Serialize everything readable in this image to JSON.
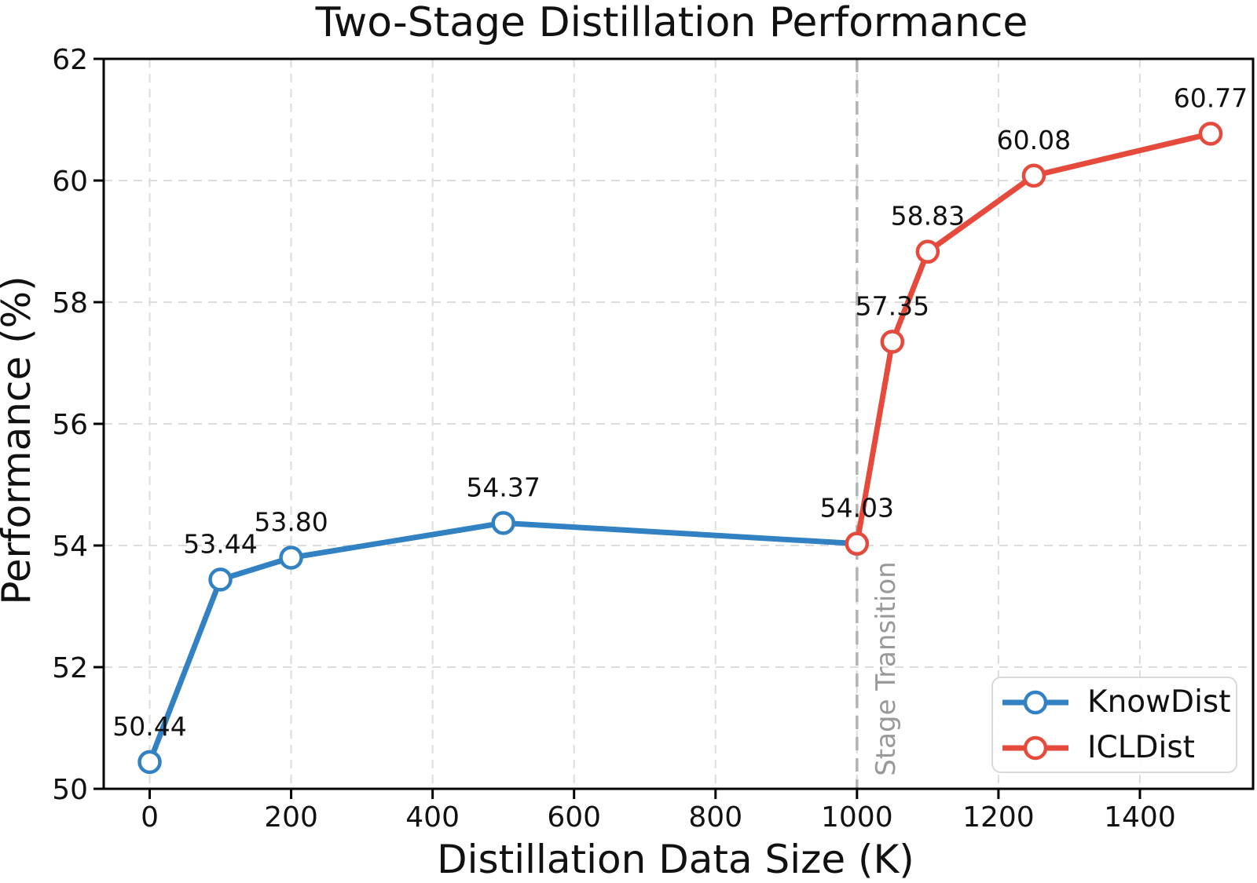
{
  "chart_data": {
    "type": "line",
    "title": "Two-Stage Distillation Performance",
    "xlabel": "Distillation Data Size (K)",
    "ylabel": "Performance (%)",
    "xlim": [
      -65,
      1560
    ],
    "ylim": [
      50,
      62
    ],
    "x_ticks": [
      0,
      200,
      400,
      600,
      800,
      1000,
      1200,
      1400
    ],
    "y_ticks": [
      50,
      52,
      54,
      56,
      58,
      60,
      62
    ],
    "grid": true,
    "legend_position": "lower right",
    "series": [
      {
        "name": "KnowDist",
        "color": "#3181c3",
        "x": [
          0,
          100,
          200,
          500,
          1000
        ],
        "y": [
          50.44,
          53.44,
          53.8,
          54.37,
          54.03
        ],
        "point_labels": [
          "50.44",
          "53.44",
          "53.80",
          "54.37",
          null
        ]
      },
      {
        "name": "ICLDist",
        "color": "#e64a3c",
        "x": [
          1000,
          1050,
          1100,
          1250,
          1500
        ],
        "y": [
          54.03,
          57.35,
          58.83,
          60.08,
          60.77
        ],
        "point_labels": [
          "54.03",
          "57.35",
          "58.83",
          "60.08",
          "60.77"
        ]
      }
    ],
    "vline": {
      "x": 1000,
      "label": "Stage Transition",
      "line_color": "#b3b3b3",
      "label_color": "#999999"
    },
    "colors": {
      "background": "#ffffff",
      "spine": "#000000",
      "grid": "#dcdcdc",
      "annotation": "#111111",
      "marker_fill": "#ffffff"
    }
  }
}
